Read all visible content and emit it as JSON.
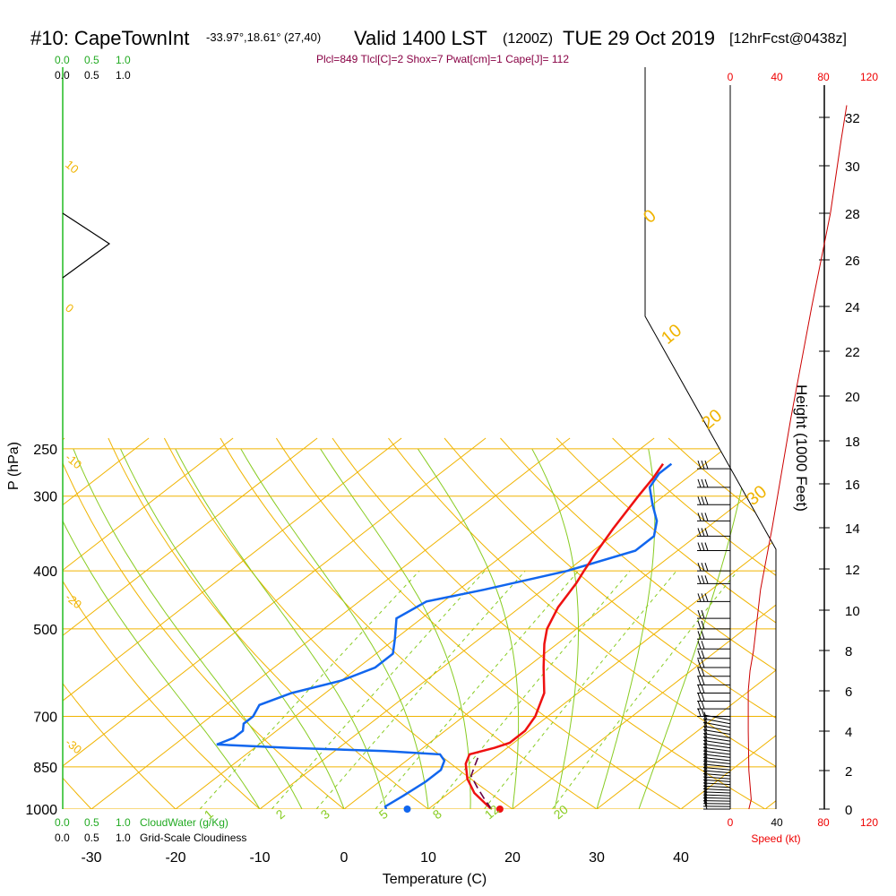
{
  "header": {
    "station": "#10: CapeTownInt",
    "coords": "-33.97°,18.61° (27,40)",
    "valid": "Valid 1400 LST",
    "zulu": "(1200Z)",
    "date": "TUE 29 Oct 2019",
    "forecast": "[12hrFcst@0438z]"
  },
  "indices": "Plcl=849 Tlcl[C]=2 Shox=7 Pwat[cm]=1 Cape[J]= 112",
  "legend": {
    "top_green": [
      "0.0",
      "0.5",
      "1.0"
    ],
    "top_black": [
      "0.0",
      "0.5",
      "1.0"
    ],
    "bottom_green": [
      "0.0",
      "0.5",
      "1.0"
    ],
    "cloudwater_label": "CloudWater (g/Kg)",
    "bottom_black": [
      "0.0",
      "0.5",
      "1.0"
    ],
    "cloudiness_label": "Grid-Scale Cloudiness"
  },
  "speed_axis": {
    "ticks": [
      "0",
      "40",
      "80",
      "120"
    ],
    "label": "Speed (kt)"
  },
  "colors": {
    "isotherm": "#f0b400",
    "dry_adiabat": "#f0b400",
    "moist_adiabat": "#88cc22",
    "mixing_ratio": "#88cc22",
    "temperature": "#ee1111",
    "dewpoint": "#1166ee",
    "parcel": "#660044",
    "speed_profile": "#cc0000",
    "cloud_water": "#22aa22"
  },
  "chart_data": {
    "type": "line",
    "title": "",
    "xlabel": "Temperature (C)",
    "ylabel": "P (hPa)",
    "y2label": "Height (1000 Feet)",
    "xlim": [
      -33,
      47
    ],
    "ylim_pressure": [
      1000,
      250
    ],
    "x_ticks": [
      -30,
      -20,
      -10,
      0,
      10,
      20,
      30,
      40
    ],
    "pressure_ticks": [
      250,
      300,
      400,
      500,
      700,
      850,
      1000
    ],
    "height_ticks": [
      0,
      2,
      4,
      6,
      8,
      10,
      12,
      14,
      16,
      18,
      20,
      22,
      24,
      26,
      28,
      30,
      32
    ],
    "dry_adiabat_labels": [
      "10",
      "0",
      "-10",
      "-20",
      "-30"
    ],
    "moist_adiabat_labels": [
      "0",
      "10",
      "20",
      "30"
    ],
    "mixing_ratio_labels": [
      "1",
      "2",
      "3",
      "5",
      "8",
      "12",
      "20"
    ],
    "series": [
      {
        "name": "temperature",
        "points": [
          [
            17.5,
            1000
          ],
          [
            16,
            980
          ],
          [
            13,
            940
          ],
          [
            10,
            890
          ],
          [
            7.5,
            840
          ],
          [
            6.5,
            810
          ],
          [
            8.5,
            790
          ],
          [
            9.5,
            775
          ],
          [
            9.5,
            740
          ],
          [
            8.5,
            700
          ],
          [
            6,
            640
          ],
          [
            2,
            580
          ],
          [
            -1.5,
            530
          ],
          [
            -3.5,
            500
          ],
          [
            -5.5,
            460
          ],
          [
            -7,
            420
          ],
          [
            -8,
            400
          ],
          [
            -9.5,
            370
          ],
          [
            -11,
            340
          ],
          [
            -13,
            300
          ],
          [
            -14,
            280
          ],
          [
            -15,
            265
          ]
        ]
      },
      {
        "name": "dewpoint",
        "points": [
          [
            5,
            1000
          ],
          [
            4.5,
            990
          ],
          [
            5,
            950
          ],
          [
            5.5,
            900
          ],
          [
            5.5,
            860
          ],
          [
            4.5,
            830
          ],
          [
            3,
            810
          ],
          [
            -4,
            800
          ],
          [
            -16,
            790
          ],
          [
            -25,
            780
          ],
          [
            -24,
            760
          ],
          [
            -24,
            740
          ],
          [
            -25,
            720
          ],
          [
            -25,
            700
          ],
          [
            -26,
            670
          ],
          [
            -24,
            640
          ],
          [
            -20,
            610
          ],
          [
            -18,
            580
          ],
          [
            -18,
            550
          ],
          [
            -20,
            520
          ],
          [
            -23,
            480
          ],
          [
            -22,
            450
          ],
          [
            -17,
            430
          ],
          [
            -10,
            400
          ],
          [
            -5,
            370
          ],
          [
            -5,
            350
          ],
          [
            -7,
            330
          ],
          [
            -10,
            310
          ],
          [
            -13,
            290
          ],
          [
            -14,
            275
          ],
          [
            -14,
            265
          ]
        ]
      },
      {
        "name": "parcel",
        "points": [
          [
            17.5,
            1000
          ],
          [
            15,
            960
          ],
          [
            12.5,
            920
          ],
          [
            10,
            880
          ],
          [
            9,
            850
          ],
          [
            8,
            820
          ]
        ]
      }
    ],
    "surface_temperature": 18.5,
    "surface_dewpoint": 7.5,
    "speed_profile": [
      [
        16,
        0
      ],
      [
        18,
        0.5
      ],
      [
        16,
        2
      ],
      [
        15.5,
        4
      ],
      [
        15.5,
        6
      ],
      [
        17,
        7
      ],
      [
        20,
        8
      ],
      [
        26,
        11
      ],
      [
        36,
        14
      ],
      [
        52,
        19
      ],
      [
        70,
        24
      ],
      [
        86,
        28
      ],
      [
        95,
        31
      ],
      [
        100,
        32.5
      ]
    ],
    "wind_barbs_pressure": [
      1000,
      990,
      980,
      970,
      960,
      950,
      940,
      930,
      920,
      910,
      900,
      890,
      880,
      870,
      860,
      850,
      840,
      830,
      820,
      810,
      800,
      790,
      780,
      770,
      760,
      750,
      740,
      730,
      720,
      710,
      700,
      680,
      660,
      640,
      620,
      600,
      580,
      560,
      540,
      520,
      500,
      480,
      450,
      420,
      400,
      370,
      350,
      330,
      310,
      290,
      270
    ]
  }
}
